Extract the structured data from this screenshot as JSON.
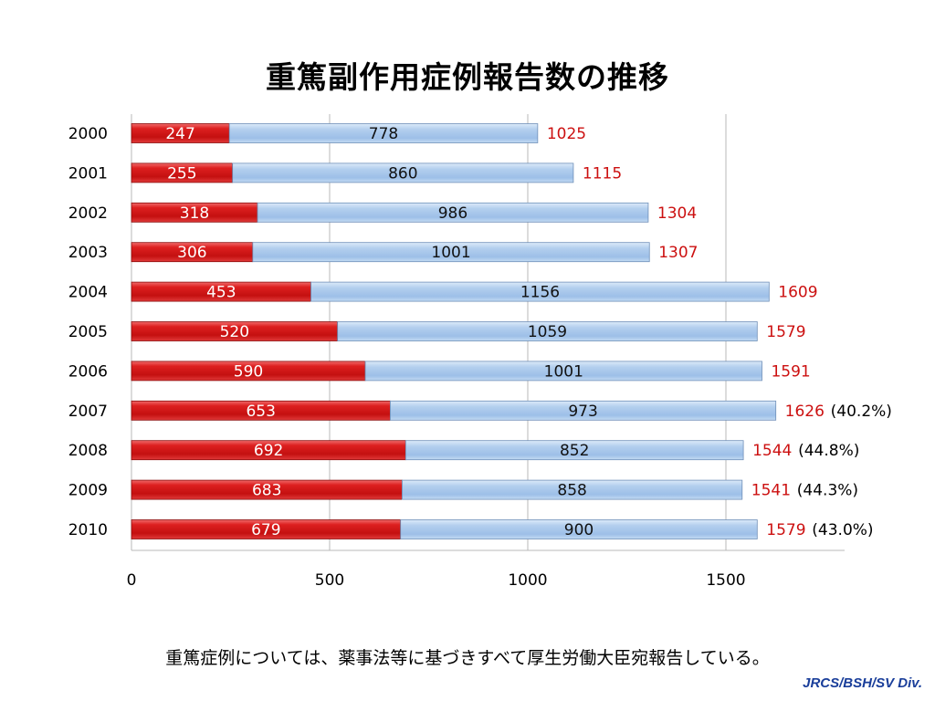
{
  "title": "重篤副作用症例報告数の推移",
  "footnote": "重篤症例については、薬事法等に基づきすべて厚生労働大臣宛報告している。",
  "credit": "JRCS/BSH/SV Div.",
  "colors": {
    "severe_bar": "#cc1414",
    "other_bar": "#a9c8ec",
    "total_label": "#cc1010",
    "grid": "#b8b8b8"
  },
  "chart_data": {
    "type": "bar",
    "orientation": "horizontal",
    "stacked": true,
    "categories": [
      "2000",
      "2001",
      "2002",
      "2003",
      "2004",
      "2005",
      "2006",
      "2007",
      "2008",
      "2009",
      "2010"
    ],
    "series": [
      {
        "values": [
          247,
          255,
          318,
          306,
          453,
          520,
          590,
          653,
          692,
          683,
          679
        ]
      },
      {
        "values": [
          778,
          860,
          986,
          1001,
          1156,
          1059,
          1001,
          973,
          852,
          858,
          900
        ]
      }
    ],
    "totals": [
      1025,
      1115,
      1304,
      1307,
      1609,
      1579,
      1591,
      1626,
      1544,
      1541,
      1579
    ],
    "percent_annotations": [
      {
        "category": "2007",
        "text": "(40.2%)"
      },
      {
        "category": "2008",
        "text": "(44.8%)"
      },
      {
        "category": "2009",
        "text": "(44.3%)"
      },
      {
        "category": "2010",
        "text": "(43.0%)"
      }
    ],
    "xlim": [
      0,
      1800
    ],
    "xticks": [
      0,
      500,
      1000,
      1500
    ],
    "grid": true,
    "legend": "none"
  }
}
